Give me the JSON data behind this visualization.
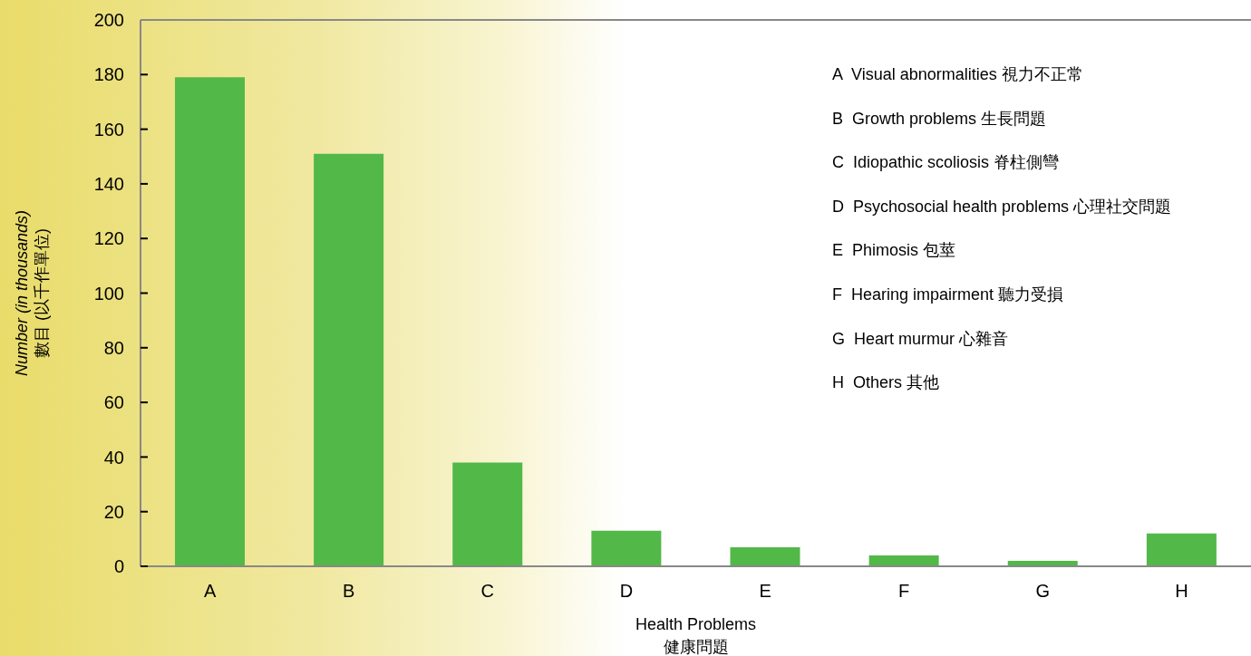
{
  "chart_data": {
    "type": "bar",
    "xlabel": "Health Problems\n健康問題",
    "ylabel": "Number (in thousands)\n數目 (以千作單位)",
    "categories": [
      "A",
      "B",
      "C",
      "D",
      "E",
      "F",
      "G",
      "H"
    ],
    "values": [
      179,
      151,
      38,
      13,
      7,
      4,
      2,
      12
    ],
    "color": "#52b848",
    "ylim": [
      0,
      200
    ],
    "yticks": [
      0,
      20,
      40,
      60,
      80,
      100,
      120,
      140,
      160,
      180,
      200
    ],
    "grid": false,
    "legend": false,
    "annotations": [
      "A  Visual abnormalities 視力不正常",
      "B  Growth problems 生長問題",
      "C  Idiopathic scoliosis 脊柱側彎",
      "D  Psychosocial health problems 心理社交問題",
      "E  Phimosis 包莖",
      "F  Hearing impairment 聽力受損",
      "G  Heart murmur 心雜音",
      "H  Others 其他"
    ]
  }
}
